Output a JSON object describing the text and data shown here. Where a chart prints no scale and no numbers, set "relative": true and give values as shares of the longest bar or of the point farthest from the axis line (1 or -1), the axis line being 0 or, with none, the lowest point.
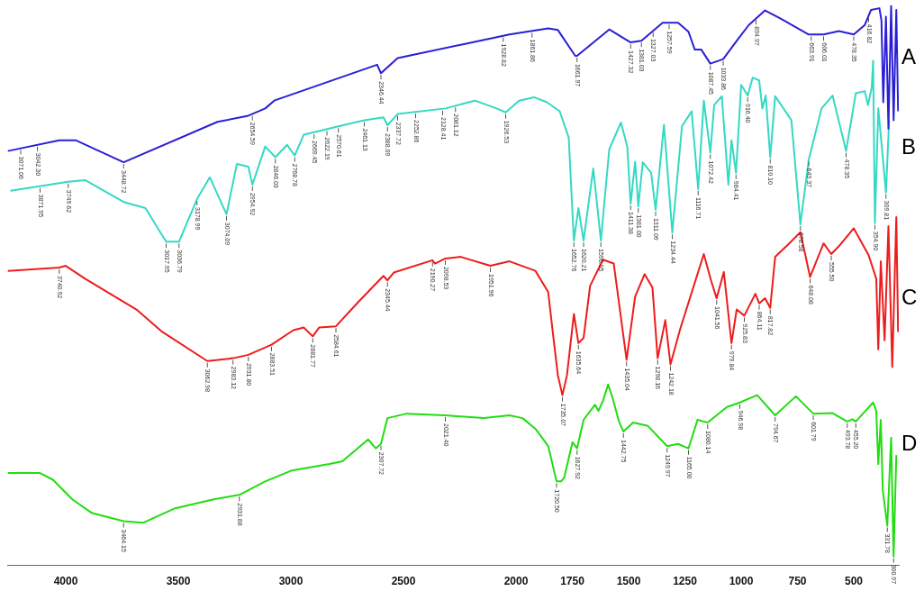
{
  "chart_data": {
    "type": "line",
    "relative": true,
    "marker": "none",
    "grid": false,
    "legend": false,
    "xlim": [
      4260,
      300
    ],
    "xticks": [
      4000,
      3500,
      3000,
      2500,
      2000,
      1750,
      1500,
      1250,
      1000,
      750,
      500
    ],
    "series": [
      {
        "name": "A",
        "color": "#2a1fd6",
        "x": [
          4257,
          4029,
          3954,
          3743,
          3326,
          3189,
          3114,
          3074,
          2617,
          2600,
          2526,
          2217,
          2029,
          1857,
          1814,
          1737,
          1729,
          1586,
          1491,
          1443,
          1349,
          1280,
          1234,
          1206,
          1177,
          1137,
          1080,
          1014,
          966,
          894,
          823,
          700,
          634,
          566,
          500,
          451,
          423,
          386,
          377,
          369,
          357,
          346,
          334,
          323,
          311,
          303
        ],
        "values": [
          0.74,
          0.759,
          0.759,
          0.72,
          0.792,
          0.803,
          0.816,
          0.83,
          0.894,
          0.879,
          0.906,
          0.932,
          0.948,
          0.959,
          0.956,
          0.91,
          0.91,
          0.957,
          0.934,
          0.937,
          0.969,
          0.969,
          0.953,
          0.921,
          0.921,
          0.896,
          0.904,
          0.94,
          0.965,
          0.991,
          0.976,
          0.948,
          0.948,
          0.954,
          0.948,
          0.965,
          0.992,
          0.995,
          0.973,
          0.827,
          0.98,
          0.78,
          1.0,
          0.795,
          0.992,
          0.811
        ]
      },
      {
        "name": "B",
        "color": "#33d9c4",
        "x": [
          4246,
          3989,
          3914,
          3743,
          3646,
          3554,
          3497,
          3417,
          3360,
          3286,
          3240,
          3189,
          3171,
          3114,
          3069,
          3017,
          2983,
          2943,
          2789,
          2674,
          2589,
          2571,
          2526,
          2314,
          2183,
          2086,
          2046,
          1986,
          1920,
          1863,
          1806,
          1766,
          1743,
          1723,
          1700,
          1657,
          1623,
          1586,
          1534,
          1506,
          1491,
          1471,
          1457,
          1437,
          1400,
          1380,
          1343,
          1306,
          1263,
          1220,
          1191,
          1166,
          1137,
          1120,
          1086,
          1057,
          1043,
          1023,
          1000,
          971,
          949,
          920,
          906,
          891,
          871,
          849,
          777,
          737,
          700,
          643,
          594,
          534,
          491,
          451,
          437,
          420,
          414,
          406,
          391,
          357,
          343
        ],
        "values": [
          0.669,
          0.685,
          0.688,
          0.649,
          0.638,
          0.578,
          0.578,
          0.654,
          0.693,
          0.627,
          0.717,
          0.712,
          0.68,
          0.748,
          0.729,
          0.751,
          0.732,
          0.769,
          0.784,
          0.795,
          0.8,
          0.786,
          0.806,
          0.816,
          0.83,
          0.816,
          0.809,
          0.83,
          0.836,
          0.827,
          0.811,
          0.764,
          0.58,
          0.638,
          0.58,
          0.709,
          0.58,
          0.743,
          0.791,
          0.748,
          0.646,
          0.721,
          0.641,
          0.72,
          0.701,
          0.635,
          0.787,
          0.594,
          0.784,
          0.811,
          0.672,
          0.83,
          0.737,
          0.822,
          0.838,
          0.68,
          0.759,
          0.701,
          0.858,
          0.839,
          0.871,
          0.866,
          0.816,
          0.839,
          0.729,
          0.838,
          0.795,
          0.609,
          0.724,
          0.816,
          0.839,
          0.74,
          0.843,
          0.847,
          0.822,
          0.854,
          0.901,
          0.611,
          0.816,
          0.666,
          0.795
        ]
      },
      {
        "name": "C",
        "color": "#ee1c1c",
        "x": [
          4257,
          4029,
          4000,
          3914,
          3686,
          3571,
          3371,
          3257,
          3189,
          3086,
          2989,
          2943,
          2903,
          2874,
          2800,
          2697,
          2589,
          2571,
          2543,
          2371,
          2360,
          2314,
          2246,
          2114,
          2029,
          1914,
          1857,
          1837,
          1814,
          1794,
          1774,
          1743,
          1723,
          1700,
          1671,
          1614,
          1566,
          1509,
          1471,
          1429,
          1394,
          1371,
          1337,
          1314,
          1271,
          1166,
          1134,
          1109,
          1077,
          1043,
          1020,
          986,
          937,
          920,
          894,
          871,
          849,
          794,
          737,
          694,
          634,
          600,
          566,
          500,
          434,
          400,
          391,
          380,
          363,
          346,
          329,
          311,
          303
        ],
        "values": [
          0.526,
          0.532,
          0.535,
          0.512,
          0.457,
          0.417,
          0.365,
          0.37,
          0.376,
          0.394,
          0.42,
          0.425,
          0.409,
          0.425,
          0.427,
          0.472,
          0.517,
          0.509,
          0.523,
          0.545,
          0.539,
          0.548,
          0.551,
          0.535,
          0.543,
          0.526,
          0.488,
          0.417,
          0.339,
          0.304,
          0.339,
          0.449,
          0.397,
          0.406,
          0.499,
          0.546,
          0.539,
          0.367,
          0.48,
          0.52,
          0.496,
          0.37,
          0.438,
          0.359,
          0.422,
          0.556,
          0.509,
          0.477,
          0.524,
          0.397,
          0.457,
          0.446,
          0.485,
          0.468,
          0.477,
          0.46,
          0.551,
          0.572,
          0.595,
          0.515,
          0.575,
          0.556,
          0.57,
          0.602,
          0.554,
          0.512,
          0.386,
          0.543,
          0.402,
          0.606,
          0.354,
          0.622,
          0.417
        ]
      },
      {
        "name": "D",
        "color": "#22dd11",
        "x": [
          4257,
          4114,
          4057,
          3971,
          3886,
          3743,
          3657,
          3514,
          3343,
          3229,
          3114,
          3000,
          2829,
          2771,
          2657,
          2623,
          2600,
          2571,
          2486,
          2314,
          2143,
          2029,
          1971,
          1914,
          1857,
          1820,
          1800,
          1786,
          1749,
          1729,
          1700,
          1649,
          1634,
          1614,
          1591,
          1571,
          1543,
          1523,
          1480,
          1414,
          1329,
          1280,
          1234,
          1194,
          1149,
          1063,
          1006,
          929,
          849,
          757,
          680,
          594,
          529,
          506,
          491,
          414,
          400,
          391,
          380,
          371,
          351,
          334,
          323,
          311
        ],
        "values": [
          0.165,
          0.165,
          0.153,
          0.118,
          0.094,
          0.079,
          0.076,
          0.102,
          0.118,
          0.126,
          0.15,
          0.169,
          0.181,
          0.186,
          0.225,
          0.209,
          0.217,
          0.263,
          0.271,
          0.268,
          0.263,
          0.268,
          0.263,
          0.244,
          0.213,
          0.15,
          0.15,
          0.157,
          0.22,
          0.209,
          0.26,
          0.287,
          0.276,
          0.294,
          0.323,
          0.299,
          0.257,
          0.239,
          0.255,
          0.249,
          0.213,
          0.217,
          0.209,
          0.26,
          0.255,
          0.283,
          0.291,
          0.304,
          0.268,
          0.302,
          0.271,
          0.272,
          0.257,
          0.261,
          0.257,
          0.291,
          0.276,
          0.181,
          0.26,
          0.134,
          0.071,
          0.228,
          0.016,
          0.197
        ]
      }
    ],
    "annotations": [
      {
        "text": "3071.06",
        "x": 4200,
        "y": 0.745
      },
      {
        "text": "3042.30",
        "x": 4126,
        "y": 0.751
      },
      {
        "text": "3448.72",
        "x": 3743,
        "y": 0.72
      },
      {
        "text": "2654.59",
        "x": 3171,
        "y": 0.806
      },
      {
        "text": "2346.44",
        "x": 2600,
        "y": 0.879
      },
      {
        "text": "1928.82",
        "x": 2057,
        "y": 0.946
      },
      {
        "text": "1861.86",
        "x": 1929,
        "y": 0.954
      },
      {
        "text": "1661.97",
        "x": 1729,
        "y": 0.91
      },
      {
        "text": "1427.32",
        "x": 1491,
        "y": 0.934
      },
      {
        "text": "1381.03",
        "x": 1443,
        "y": 0.937
      },
      {
        "text": "1327.03",
        "x": 1391,
        "y": 0.955
      },
      {
        "text": "1257.59",
        "x": 1320,
        "y": 0.969
      },
      {
        "text": "1087.45",
        "x": 1137,
        "y": 0.896
      },
      {
        "text": "1033.86",
        "x": 1080,
        "y": 0.904
      },
      {
        "text": "894.97",
        "x": 934,
        "y": 0.977
      },
      {
        "text": "663.91",
        "x": 689,
        "y": 0.948
      },
      {
        "text": "606.01",
        "x": 634,
        "y": 0.948
      },
      {
        "text": "478.35",
        "x": 500,
        "y": 0.948
      },
      {
        "text": "416.82",
        "x": 434,
        "y": 0.981
      },
      {
        "text": "3871.95",
        "x": 4114,
        "y": 0.677
      },
      {
        "text": "3749.62",
        "x": 3989,
        "y": 0.685
      },
      {
        "text": "3017.95",
        "x": 3554,
        "y": 0.578
      },
      {
        "text": "3036.79",
        "x": 3497,
        "y": 0.578
      },
      {
        "text": "3178.99",
        "x": 3417,
        "y": 0.654
      },
      {
        "text": "3074.09",
        "x": 3286,
        "y": 0.627
      },
      {
        "text": "2954.92",
        "x": 3171,
        "y": 0.68
      },
      {
        "text": "2846.03",
        "x": 3069,
        "y": 0.729
      },
      {
        "text": "2768.78",
        "x": 2983,
        "y": 0.732
      },
      {
        "text": "2669.45",
        "x": 2897,
        "y": 0.773
      },
      {
        "text": "2622.19",
        "x": 2840,
        "y": 0.779
      },
      {
        "text": "2570.61",
        "x": 2789,
        "y": 0.784
      },
      {
        "text": "2461.13",
        "x": 2674,
        "y": 0.795
      },
      {
        "text": "2388.09",
        "x": 2571,
        "y": 0.786
      },
      {
        "text": "2337.72",
        "x": 2526,
        "y": 0.806
      },
      {
        "text": "2252.86",
        "x": 2446,
        "y": 0.81
      },
      {
        "text": "2128.41",
        "x": 2326,
        "y": 0.815
      },
      {
        "text": "2081.12",
        "x": 2269,
        "y": 0.821
      },
      {
        "text": "1926.53",
        "x": 2046,
        "y": 0.809
      },
      {
        "text": "1652.76",
        "x": 1743,
        "y": 0.58
      },
      {
        "text": "1620.21",
        "x": 1700,
        "y": 0.58
      },
      {
        "text": "1596.05",
        "x": 1623,
        "y": 0.58
      },
      {
        "text": "1411.38",
        "x": 1491,
        "y": 0.646
      },
      {
        "text": "1381.00",
        "x": 1457,
        "y": 0.641
      },
      {
        "text": "1311.09",
        "x": 1380,
        "y": 0.635
      },
      {
        "text": "1234.44",
        "x": 1306,
        "y": 0.594
      },
      {
        "text": "1116.71",
        "x": 1191,
        "y": 0.672
      },
      {
        "text": "1072.42",
        "x": 1137,
        "y": 0.737
      },
      {
        "text": "984.41",
        "x": 1023,
        "y": 0.701
      },
      {
        "text": "916.40",
        "x": 971,
        "y": 0.839
      },
      {
        "text": "810.10",
        "x": 871,
        "y": 0.729
      },
      {
        "text": "678.58",
        "x": 737,
        "y": 0.609
      },
      {
        "text": "643.37",
        "x": 700,
        "y": 0.724
      },
      {
        "text": "478.35",
        "x": 534,
        "y": 0.74
      },
      {
        "text": "354.90",
        "x": 406,
        "y": 0.611
      },
      {
        "text": "309.81",
        "x": 357,
        "y": 0.666
      },
      {
        "text": "3740.92",
        "x": 4029,
        "y": 0.532
      },
      {
        "text": "3062.98",
        "x": 3371,
        "y": 0.365
      },
      {
        "text": "2983.12",
        "x": 3257,
        "y": 0.37
      },
      {
        "text": "2931.80",
        "x": 3189,
        "y": 0.376
      },
      {
        "text": "2883.51",
        "x": 3086,
        "y": 0.394
      },
      {
        "text": "2881.77",
        "x": 2903,
        "y": 0.409
      },
      {
        "text": "2584.61",
        "x": 2800,
        "y": 0.427
      },
      {
        "text": "2345.44",
        "x": 2571,
        "y": 0.509
      },
      {
        "text": "2190.27",
        "x": 2371,
        "y": 0.545
      },
      {
        "text": "2098.53",
        "x": 2314,
        "y": 0.548
      },
      {
        "text": "1951.96",
        "x": 2114,
        "y": 0.535
      },
      {
        "text": "1735.07",
        "x": 1794,
        "y": 0.304
      },
      {
        "text": "1635.64",
        "x": 1723,
        "y": 0.397
      },
      {
        "text": "1435.04",
        "x": 1509,
        "y": 0.367
      },
      {
        "text": "1298.16",
        "x": 1371,
        "y": 0.37
      },
      {
        "text": "1242.18",
        "x": 1314,
        "y": 0.359
      },
      {
        "text": "1041.56",
        "x": 1109,
        "y": 0.477
      },
      {
        "text": "979.84",
        "x": 1043,
        "y": 0.397
      },
      {
        "text": "925.83",
        "x": 986,
        "y": 0.446
      },
      {
        "text": "864.11",
        "x": 920,
        "y": 0.468
      },
      {
        "text": "817.82",
        "x": 871,
        "y": 0.46
      },
      {
        "text": "648.08",
        "x": 694,
        "y": 0.515
      },
      {
        "text": "555.50",
        "x": 600,
        "y": 0.556
      },
      {
        "text": "3464.15",
        "x": 3743,
        "y": 0.079
      },
      {
        "text": "2931.88",
        "x": 3229,
        "y": 0.126
      },
      {
        "text": "2307.72",
        "x": 2600,
        "y": 0.217
      },
      {
        "text": "2021.40",
        "x": 2314,
        "y": 0.268
      },
      {
        "text": "1720.50",
        "x": 1820,
        "y": 0.15
      },
      {
        "text": "1627.92",
        "x": 1729,
        "y": 0.209
      },
      {
        "text": "1442.75",
        "x": 1523,
        "y": 0.239
      },
      {
        "text": "1249.97",
        "x": 1329,
        "y": 0.213
      },
      {
        "text": "1165.00",
        "x": 1234,
        "y": 0.209
      },
      {
        "text": "1080.14",
        "x": 1149,
        "y": 0.255
      },
      {
        "text": "946.98",
        "x": 1006,
        "y": 0.291
      },
      {
        "text": "794.67",
        "x": 849,
        "y": 0.268
      },
      {
        "text": "601.79",
        "x": 680,
        "y": 0.271
      },
      {
        "text": "493.78",
        "x": 529,
        "y": 0.257
      },
      {
        "text": "455.20",
        "x": 491,
        "y": 0.257
      },
      {
        "text": "331.78",
        "x": 351,
        "y": 0.071
      },
      {
        "text": "300.97",
        "x": 323,
        "y": 0.016
      }
    ]
  }
}
